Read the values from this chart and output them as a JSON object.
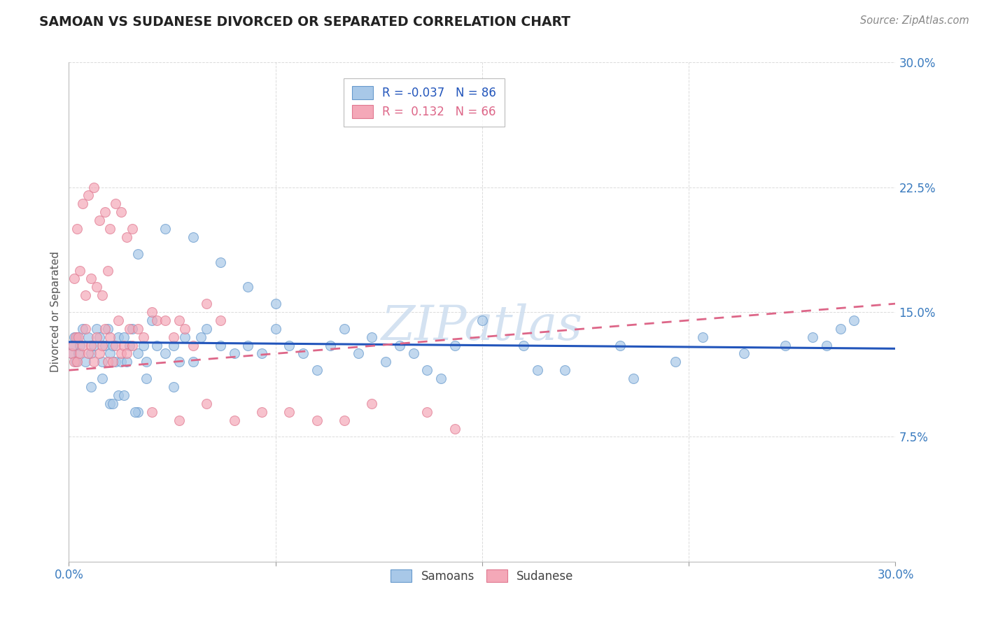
{
  "title": "SAMOAN VS SUDANESE DIVORCED OR SEPARATED CORRELATION CHART",
  "source": "Source: ZipAtlas.com",
  "ylabel": "Divorced or Separated",
  "xlim": [
    0.0,
    30.0
  ],
  "ylim": [
    0.0,
    30.0
  ],
  "ytick_vals": [
    7.5,
    15.0,
    22.5,
    30.0
  ],
  "xtick_vals": [
    0.0,
    30.0
  ],
  "grid_color": "#cccccc",
  "background_color": "#ffffff",
  "samoans_color": "#a8c8e8",
  "sudanese_color": "#f4a8b8",
  "samoans_edge_color": "#6699cc",
  "sudanese_edge_color": "#e07890",
  "samoans_line_color": "#2255bb",
  "sudanese_line_color": "#dd6688",
  "R_samoans": -0.037,
  "N_samoans": 86,
  "R_sudanese": 0.132,
  "N_sudanese": 66,
  "trend_blue_start_y": 13.2,
  "trend_blue_end_y": 12.8,
  "trend_pink_start_y": 11.5,
  "trend_pink_end_y": 15.5,
  "samoans_x": [
    0.1,
    0.15,
    0.2,
    0.25,
    0.3,
    0.35,
    0.4,
    0.5,
    0.6,
    0.7,
    0.8,
    0.9,
    1.0,
    1.1,
    1.2,
    1.3,
    1.4,
    1.5,
    1.6,
    1.7,
    1.8,
    1.9,
    2.0,
    2.1,
    2.2,
    2.3,
    2.5,
    2.7,
    2.8,
    3.0,
    3.2,
    3.5,
    3.8,
    4.0,
    4.2,
    4.5,
    4.8,
    5.0,
    5.5,
    6.0,
    6.5,
    7.0,
    7.5,
    8.0,
    8.5,
    9.0,
    9.5,
    10.0,
    10.5,
    11.0,
    11.5,
    12.0,
    12.5,
    13.0,
    14.0,
    15.0,
    16.5,
    18.0,
    20.0,
    22.0,
    23.0,
    24.5,
    26.0,
    27.5,
    2.5,
    3.5,
    4.5,
    5.5,
    6.5,
    7.5,
    1.8,
    2.8,
    3.8,
    1.5,
    2.5,
    0.8,
    1.2,
    1.6,
    2.0,
    2.4,
    13.5,
    17.0,
    20.5,
    27.0,
    28.0,
    28.5
  ],
  "samoans_y": [
    12.5,
    13.0,
    13.5,
    12.0,
    13.5,
    12.5,
    13.0,
    14.0,
    12.0,
    13.5,
    12.5,
    13.0,
    14.0,
    13.5,
    12.0,
    13.0,
    14.0,
    12.5,
    13.0,
    12.0,
    13.5,
    12.0,
    13.5,
    12.0,
    13.0,
    14.0,
    12.5,
    13.0,
    12.0,
    14.5,
    13.0,
    12.5,
    13.0,
    12.0,
    13.5,
    12.0,
    13.5,
    14.0,
    13.0,
    12.5,
    13.0,
    12.5,
    14.0,
    13.0,
    12.5,
    11.5,
    13.0,
    14.0,
    12.5,
    13.5,
    12.0,
    13.0,
    12.5,
    11.5,
    13.0,
    14.5,
    13.0,
    11.5,
    13.0,
    12.0,
    13.5,
    12.5,
    13.0,
    13.0,
    18.5,
    20.0,
    19.5,
    18.0,
    16.5,
    15.5,
    10.0,
    11.0,
    10.5,
    9.5,
    9.0,
    10.5,
    11.0,
    9.5,
    10.0,
    9.0,
    11.0,
    11.5,
    11.0,
    13.5,
    14.0,
    14.5
  ],
  "sudanese_x": [
    0.1,
    0.15,
    0.2,
    0.25,
    0.3,
    0.35,
    0.4,
    0.5,
    0.6,
    0.7,
    0.8,
    0.9,
    1.0,
    1.1,
    1.2,
    1.3,
    1.4,
    1.5,
    1.6,
    1.7,
    1.8,
    1.9,
    2.0,
    2.1,
    2.2,
    2.3,
    2.5,
    2.7,
    3.0,
    3.2,
    3.5,
    3.8,
    4.0,
    4.2,
    4.5,
    5.0,
    5.5,
    0.3,
    0.5,
    0.7,
    0.9,
    1.1,
    1.3,
    1.5,
    1.7,
    1.9,
    2.1,
    2.3,
    0.2,
    0.4,
    0.6,
    0.8,
    1.0,
    1.2,
    1.4,
    3.0,
    4.0,
    5.0,
    6.0,
    7.0,
    8.0,
    9.0,
    10.0,
    11.0,
    13.0,
    14.0
  ],
  "sudanese_y": [
    12.5,
    13.0,
    12.0,
    13.5,
    12.0,
    13.5,
    12.5,
    13.0,
    14.0,
    12.5,
    13.0,
    12.0,
    13.5,
    12.5,
    13.0,
    14.0,
    12.0,
    13.5,
    12.0,
    13.0,
    14.5,
    12.5,
    13.0,
    12.5,
    14.0,
    13.0,
    14.0,
    13.5,
    15.0,
    14.5,
    14.5,
    13.5,
    14.5,
    14.0,
    13.0,
    15.5,
    14.5,
    20.0,
    21.5,
    22.0,
    22.5,
    20.5,
    21.0,
    20.0,
    21.5,
    21.0,
    19.5,
    20.0,
    17.0,
    17.5,
    16.0,
    17.0,
    16.5,
    16.0,
    17.5,
    9.0,
    8.5,
    9.5,
    8.5,
    9.0,
    9.0,
    8.5,
    8.5,
    9.5,
    9.0,
    8.0
  ]
}
